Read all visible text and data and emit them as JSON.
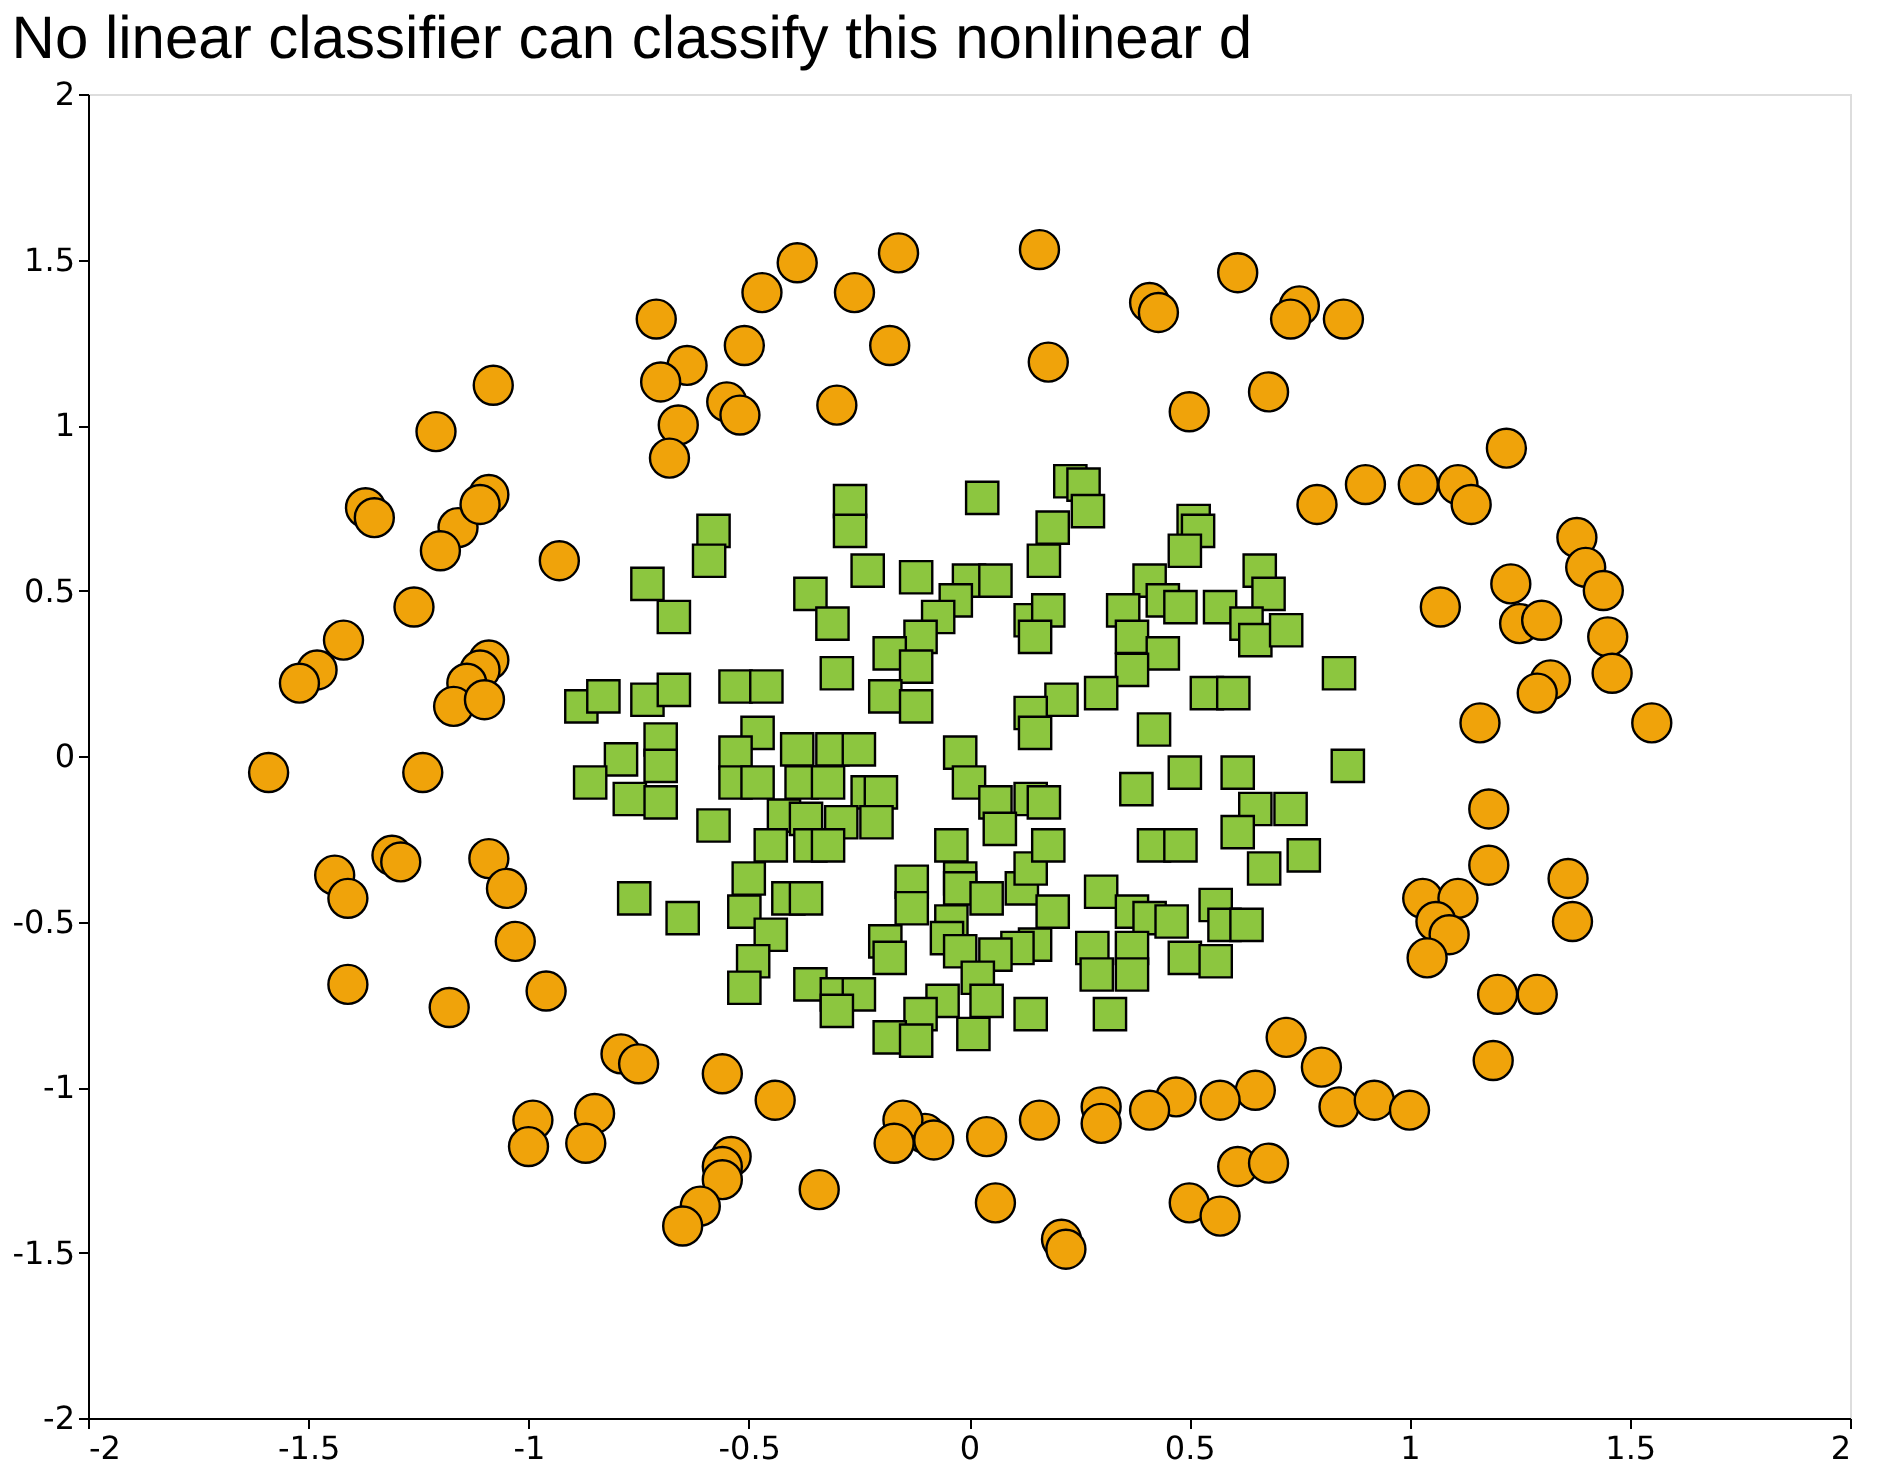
{
  "chart_data": {
    "type": "scatter",
    "title": "No linear classifier can classify this nonlinear d",
    "xlim": [
      -2,
      2
    ],
    "ylim": [
      -2,
      2
    ],
    "xticks": [
      -2,
      -1.5,
      -1,
      -0.5,
      0,
      0.5,
      1,
      1.5,
      2
    ],
    "yticks": [
      -2,
      -1.5,
      -1,
      -0.5,
      0,
      0.5,
      1,
      1.5,
      2
    ],
    "grid": false,
    "series": [
      {
        "color": "#f0a30a",
        "marker": "circle",
        "x": [
          0.16,
          -0.16,
          -0.39,
          -0.47,
          -0.26,
          -0.71,
          0.61,
          0.41,
          0.43,
          0.75,
          0.73,
          0.85,
          -0.18,
          -0.51,
          -0.64,
          -0.7,
          0.18,
          0.68,
          0.5,
          -0.3,
          -0.55,
          -0.52,
          -0.66,
          -0.68,
          -1.08,
          -1.21,
          0.9,
          1.02,
          1.11,
          1.14,
          0.79,
          1.22,
          -1.37,
          -1.35,
          -1.16,
          -1.09,
          -1.11,
          -1.2,
          -0.93,
          -1.26,
          1.07,
          1.38,
          1.4,
          1.44,
          1.23,
          1.25,
          1.3,
          -1.42,
          -1.48,
          -1.52,
          -1.09,
          -1.11,
          -1.14,
          -1.17,
          -1.1,
          1.45,
          1.46,
          1.32,
          1.29,
          1.16,
          1.55,
          -1.59,
          -1.24,
          -1.09,
          -1.05,
          -1.03,
          -1.44,
          -1.41,
          -1.31,
          -1.29,
          -1.41,
          -1.18,
          -0.96,
          1.18,
          1.18,
          1.36,
          1.37,
          1.03,
          1.11,
          1.06,
          1.09,
          1.04,
          1.2,
          1.29,
          1.19,
          0.72,
          0.8,
          0.84,
          0.92,
          1.0,
          0.65,
          0.57,
          0.47,
          0.41,
          0.3,
          0.3,
          0.16,
          0.04,
          -0.1,
          -0.15,
          -0.17,
          -0.08,
          -0.44,
          -0.56,
          -0.79,
          -0.75,
          -0.85,
          -0.99,
          -1.0,
          -0.87,
          -0.54,
          -0.56,
          -0.56,
          -0.34,
          0.61,
          0.68,
          0.5,
          0.57,
          0.06,
          0.21,
          0.22,
          -0.61,
          -0.65
        ],
        "values": [
          1.53,
          1.52,
          1.49,
          1.4,
          1.4,
          1.32,
          1.46,
          1.37,
          1.34,
          1.36,
          1.32,
          1.32,
          1.24,
          1.24,
          1.18,
          1.13,
          1.19,
          1.1,
          1.04,
          1.06,
          1.07,
          1.03,
          1.0,
          0.9,
          1.12,
          0.98,
          0.82,
          0.82,
          0.82,
          0.76,
          0.76,
          0.93,
          0.75,
          0.72,
          0.69,
          0.79,
          0.76,
          0.62,
          0.59,
          0.45,
          0.45,
          0.66,
          0.57,
          0.5,
          0.52,
          0.4,
          0.41,
          0.35,
          0.26,
          0.22,
          0.29,
          0.26,
          0.22,
          0.15,
          0.17,
          0.36,
          0.25,
          0.23,
          0.19,
          0.1,
          0.1,
          -0.05,
          -0.05,
          -0.31,
          -0.4,
          -0.56,
          -0.36,
          -0.43,
          -0.3,
          -0.32,
          -0.69,
          -0.76,
          -0.71,
          -0.16,
          -0.33,
          -0.37,
          -0.5,
          -0.43,
          -0.43,
          -0.5,
          -0.54,
          -0.61,
          -0.72,
          -0.72,
          -0.92,
          -0.85,
          -0.94,
          -1.06,
          -1.04,
          -1.07,
          -1.01,
          -1.04,
          -1.03,
          -1.07,
          -1.06,
          -1.11,
          -1.1,
          -1.15,
          -1.14,
          -1.1,
          -1.17,
          -1.16,
          -1.04,
          -0.96,
          -0.9,
          -0.93,
          -1.08,
          -1.1,
          -1.18,
          -1.17,
          -1.21,
          -1.24,
          -1.28,
          -1.31,
          -1.24,
          -1.23,
          -1.35,
          -1.39,
          -1.35,
          -1.46,
          -1.49,
          -1.36,
          -1.42
        ]
      },
      {
        "color": "#8cc63f",
        "marker": "square",
        "x": [
          -0.27,
          -0.27,
          0.03,
          0.23,
          0.26,
          0.27,
          0.19,
          0.17,
          -0.58,
          -0.59,
          -0.73,
          -0.67,
          -0.23,
          -0.12,
          -0.36,
          -0.31,
          0.0,
          0.06,
          -0.03,
          -0.07,
          -0.11,
          -0.18,
          -0.12,
          -0.19,
          -0.12,
          -0.3,
          0.14,
          0.18,
          0.15,
          0.51,
          0.52,
          0.49,
          0.41,
          0.44,
          0.35,
          0.37,
          0.48,
          0.57,
          0.66,
          0.68,
          0.63,
          0.65,
          0.72,
          0.44,
          0.37,
          0.3,
          0.21,
          0.14,
          0.15,
          0.84,
          0.54,
          0.6,
          0.42,
          -0.88,
          -0.83,
          -0.73,
          -0.67,
          -0.53,
          -0.46,
          -0.79,
          -0.7,
          -0.7,
          -0.86,
          -0.77,
          -0.7,
          -0.48,
          -0.53,
          -0.53,
          -0.48,
          -0.58,
          -0.39,
          -0.31,
          -0.25,
          -0.38,
          -0.32,
          -0.23,
          -0.2,
          -0.42,
          -0.37,
          -0.29,
          -0.21,
          -0.45,
          -0.36,
          -0.32,
          -0.5,
          -0.51,
          -0.45,
          -0.49,
          -0.51,
          -0.41,
          -0.37,
          -0.76,
          -0.65,
          -0.36,
          -0.3,
          -0.25,
          -0.3,
          -0.02,
          0.0,
          0.06,
          0.14,
          0.17,
          0.07,
          -0.04,
          -0.02,
          -0.02,
          -0.13,
          -0.13,
          -0.19,
          -0.18,
          -0.04,
          -0.05,
          -0.02,
          0.04,
          0.12,
          0.14,
          0.18,
          0.19,
          0.15,
          0.11,
          0.06,
          0.02,
          0.04,
          -0.06,
          -0.11,
          -0.18,
          -0.12,
          0.01,
          0.14,
          0.38,
          0.49,
          0.61,
          0.86,
          0.65,
          0.73,
          0.61,
          0.42,
          0.48,
          0.67,
          0.76,
          0.3,
          0.37,
          0.41,
          0.46,
          0.56,
          0.58,
          0.63,
          0.28,
          0.29,
          0.37,
          0.37,
          0.49,
          0.56,
          0.32
        ],
        "values": [
          0.77,
          0.68,
          0.78,
          0.83,
          0.82,
          0.74,
          0.69,
          0.59,
          0.68,
          0.59,
          0.52,
          0.42,
          0.56,
          0.54,
          0.49,
          0.4,
          0.53,
          0.53,
          0.47,
          0.42,
          0.36,
          0.31,
          0.27,
          0.18,
          0.15,
          0.25,
          0.41,
          0.44,
          0.36,
          0.71,
          0.68,
          0.62,
          0.53,
          0.47,
          0.44,
          0.36,
          0.45,
          0.45,
          0.56,
          0.49,
          0.4,
          0.35,
          0.38,
          0.31,
          0.26,
          0.19,
          0.17,
          0.13,
          0.07,
          0.25,
          0.19,
          0.19,
          0.08,
          0.15,
          0.18,
          0.17,
          0.2,
          0.21,
          0.21,
          -0.01,
          0.05,
          -0.03,
          -0.08,
          -0.13,
          -0.14,
          0.07,
          0.01,
          -0.08,
          -0.08,
          -0.21,
          0.02,
          0.02,
          0.02,
          -0.08,
          -0.08,
          -0.11,
          -0.11,
          -0.18,
          -0.19,
          -0.2,
          -0.2,
          -0.27,
          -0.27,
          -0.27,
          -0.37,
          -0.47,
          -0.54,
          -0.62,
          -0.7,
          -0.43,
          -0.43,
          -0.43,
          -0.49,
          -0.69,
          -0.72,
          -0.72,
          -0.77,
          0.01,
          -0.08,
          -0.14,
          -0.13,
          -0.14,
          -0.22,
          -0.27,
          -0.37,
          -0.4,
          -0.38,
          -0.46,
          -0.56,
          -0.61,
          -0.5,
          -0.55,
          -0.59,
          -0.43,
          -0.4,
          -0.34,
          -0.27,
          -0.47,
          -0.57,
          -0.58,
          -0.6,
          -0.67,
          -0.74,
          -0.74,
          -0.78,
          -0.85,
          -0.86,
          -0.84,
          -0.78,
          -0.1,
          -0.05,
          -0.05,
          -0.03,
          -0.16,
          -0.16,
          -0.23,
          -0.27,
          -0.27,
          -0.34,
          -0.3,
          -0.41,
          -0.47,
          -0.49,
          -0.5,
          -0.45,
          -0.51,
          -0.51,
          -0.58,
          -0.66,
          -0.58,
          -0.66,
          -0.61,
          -0.62,
          -0.78
        ]
      }
    ]
  }
}
